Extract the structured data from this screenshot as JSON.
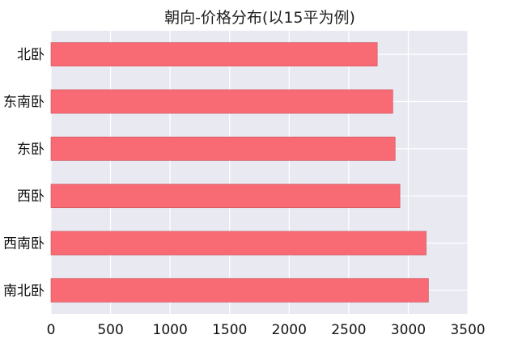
{
  "chart_data": {
    "type": "bar",
    "orientation": "horizontal",
    "title": "朝向-价格分布(以15平为例)",
    "categories": [
      "北卧",
      "东南卧",
      "东卧",
      "西卧",
      "西南卧",
      "南北卧"
    ],
    "values": [
      2740,
      2870,
      2890,
      2930,
      3150,
      3170
    ],
    "xlim": [
      0,
      3500
    ],
    "xticks": [
      0,
      500,
      1000,
      1500,
      2000,
      2500,
      3000,
      3500
    ],
    "xtick_labels": [
      "0",
      "500",
      "1000",
      "1500",
      "2000",
      "2500",
      "3000",
      "3500"
    ],
    "grid": true,
    "legend": "none",
    "colors": {
      "bar": "#f86b74",
      "bar_edge": "#c9545c",
      "plot_background": "#e9e9f2",
      "grid": "#ffffff"
    }
  }
}
